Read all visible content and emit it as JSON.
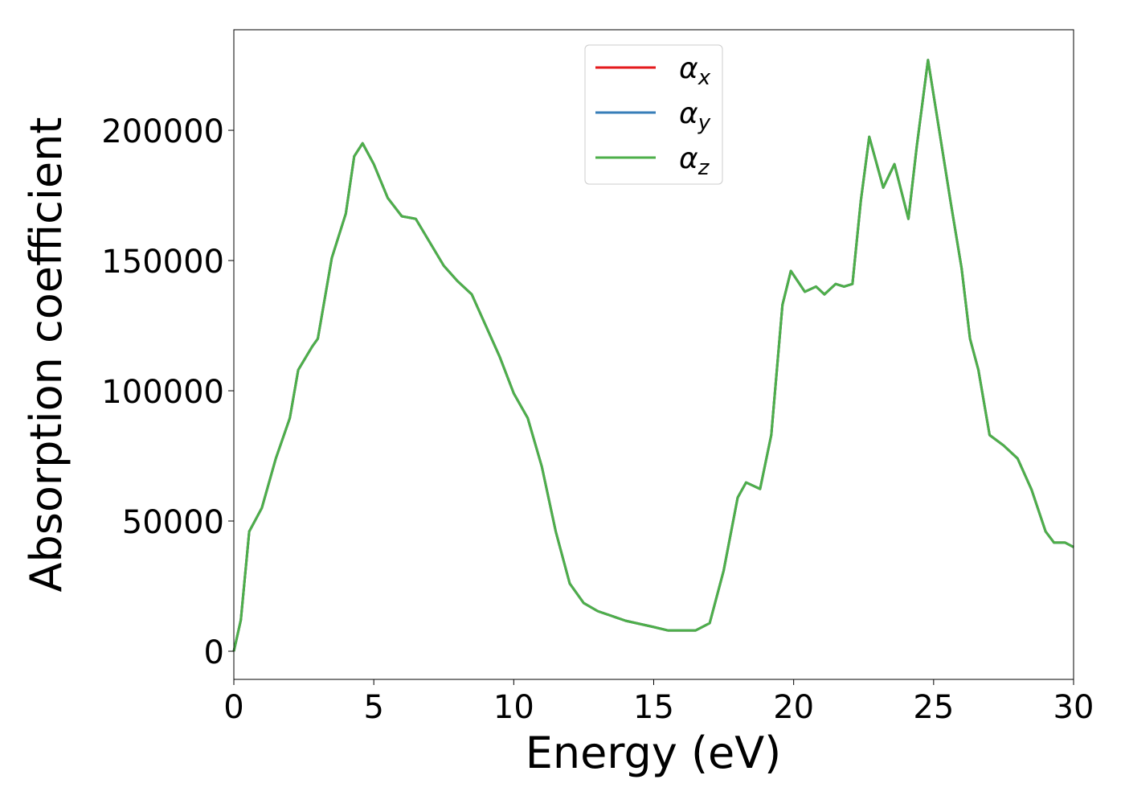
{
  "chart_data": {
    "type": "line",
    "xlabel": "Energy (eV)",
    "ylabel": "Absorption coefficient",
    "x": [
      0,
      0.25,
      0.55,
      0.8,
      1.0,
      1.5,
      2.0,
      2.3,
      2.8,
      3.0,
      3.5,
      4.0,
      4.3,
      4.6,
      5.0,
      5.5,
      6.0,
      6.5,
      7.0,
      7.5,
      8.0,
      8.5,
      9.0,
      9.5,
      10.0,
      10.5,
      11.0,
      11.5,
      12.0,
      12.5,
      13.0,
      14.0,
      15.0,
      15.5,
      16.0,
      16.5,
      17.0,
      17.5,
      18.0,
      18.3,
      18.8,
      19.2,
      19.6,
      19.9,
      20.4,
      20.8,
      21.1,
      21.5,
      21.8,
      22.1,
      22.4,
      22.7,
      23.2,
      23.6,
      24.1,
      24.4,
      24.8,
      25.2,
      25.6,
      26.0,
      26.3,
      26.6,
      27.0,
      27.5,
      28.0,
      28.5,
      29.0,
      29.3,
      29.7,
      30.0
    ],
    "series": [
      {
        "name": "αx",
        "color": "#e41a1c",
        "values": [
          0,
          12000,
          46000,
          51000,
          55000,
          74000,
          89500,
          108000,
          117000,
          120000,
          151000,
          168000,
          190000,
          195000,
          187000,
          174000,
          167000,
          166000,
          157000,
          148000,
          142000,
          137000,
          125000,
          113000,
          99000,
          89500,
          71000,
          46000,
          26000,
          18500,
          15400,
          11700,
          9300,
          8000,
          8000,
          8000,
          10800,
          31000,
          59000,
          64800,
          62300,
          83000,
          133000,
          146000,
          138000,
          140000,
          137000,
          141000,
          140000,
          141000,
          173000,
          197500,
          178000,
          187000,
          166000,
          194000,
          227000,
          200000,
          173000,
          147000,
          120000,
          108000,
          83000,
          79000,
          74000,
          62000,
          46000,
          41700,
          41700,
          40000
        ]
      },
      {
        "name": "αy",
        "color": "#377eb8",
        "values": [
          0,
          12000,
          46000,
          51000,
          55000,
          74000,
          89500,
          108000,
          117000,
          120000,
          151000,
          168000,
          190000,
          195000,
          187000,
          174000,
          167000,
          166000,
          157000,
          148000,
          142000,
          137000,
          125000,
          113000,
          99000,
          89500,
          71000,
          46000,
          26000,
          18500,
          15400,
          11700,
          9300,
          8000,
          8000,
          8000,
          10800,
          31000,
          59000,
          64800,
          62300,
          83000,
          133000,
          146000,
          138000,
          140000,
          137000,
          141000,
          140000,
          141000,
          173000,
          197500,
          178000,
          187000,
          166000,
          194000,
          227000,
          200000,
          173000,
          147000,
          120000,
          108000,
          83000,
          79000,
          74000,
          62000,
          46000,
          41700,
          41700,
          40000
        ]
      },
      {
        "name": "αz",
        "color": "#4daf4a",
        "values": [
          0,
          12000,
          46000,
          51000,
          55000,
          74000,
          89500,
          108000,
          117000,
          120000,
          151000,
          168000,
          190000,
          195000,
          187000,
          174000,
          167000,
          166000,
          157000,
          148000,
          142000,
          137000,
          125000,
          113000,
          99000,
          89500,
          71000,
          46000,
          26000,
          18500,
          15400,
          11700,
          9300,
          8000,
          8000,
          8000,
          10800,
          31000,
          59000,
          64800,
          62300,
          83000,
          133000,
          146000,
          138000,
          140000,
          137000,
          141000,
          140000,
          141000,
          173000,
          197500,
          178000,
          187000,
          166000,
          194000,
          227000,
          200000,
          173000,
          147000,
          120000,
          108000,
          83000,
          79000,
          74000,
          62000,
          46000,
          41700,
          41700,
          40000
        ]
      }
    ],
    "xlim": [
      0,
      30
    ],
    "xticks": [
      0,
      5,
      10,
      15,
      20,
      25,
      30
    ],
    "ylim": [
      -10800,
      238600
    ],
    "yticks": [
      0,
      50000,
      100000,
      150000,
      200000
    ],
    "legend": "upper center",
    "grid": false
  }
}
